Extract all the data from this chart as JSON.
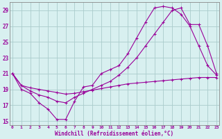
{
  "xlabel": "Windchill (Refroidissement éolien,°C)",
  "bg_color": "#d8f0f0",
  "grid_color": "#aacccc",
  "line_color": "#990099",
  "x_ticks": [
    0,
    1,
    2,
    3,
    4,
    5,
    6,
    7,
    8,
    9,
    10,
    11,
    12,
    13,
    14,
    15,
    16,
    17,
    18,
    19,
    20,
    21,
    22,
    23
  ],
  "y_ticks": [
    15,
    17,
    19,
    21,
    23,
    25,
    27,
    29
  ],
  "xlim": [
    -0.3,
    23.3
  ],
  "ylim": [
    14.5,
    30.0
  ],
  "curve1_x": [
    0,
    1,
    2,
    3,
    4,
    5,
    6,
    7,
    8,
    9,
    10,
    11,
    12,
    13,
    14,
    15,
    16,
    17,
    18,
    19,
    20,
    21,
    22,
    23
  ],
  "curve1_y": [
    21.0,
    19.0,
    18.5,
    17.3,
    16.5,
    15.2,
    15.2,
    17.5,
    19.3,
    19.5,
    21.0,
    21.5,
    22.0,
    23.5,
    25.5,
    27.5,
    29.3,
    29.5,
    29.3,
    28.5,
    27.0,
    24.5,
    22.0,
    20.8
  ],
  "curve2_x": [
    0,
    1,
    2,
    3,
    4,
    5,
    6,
    7,
    8,
    9,
    10,
    11,
    12,
    13,
    14,
    15,
    16,
    17,
    18,
    19,
    20,
    21,
    22,
    23
  ],
  "curve2_y": [
    21.0,
    19.5,
    18.8,
    18.3,
    18.0,
    17.5,
    17.3,
    18.0,
    18.5,
    19.0,
    19.5,
    20.0,
    20.8,
    21.8,
    23.0,
    24.5,
    26.0,
    27.5,
    29.0,
    29.3,
    27.2,
    27.2,
    24.5,
    21.0
  ],
  "curve3_x": [
    0,
    1,
    2,
    3,
    4,
    5,
    6,
    7,
    8,
    9,
    10,
    11,
    12,
    13,
    14,
    15,
    16,
    17,
    18,
    19,
    20,
    21,
    22,
    23
  ],
  "curve3_y": [
    21.0,
    19.5,
    19.2,
    19.0,
    18.8,
    18.6,
    18.4,
    18.5,
    18.7,
    18.9,
    19.1,
    19.3,
    19.5,
    19.7,
    19.8,
    19.9,
    20.0,
    20.1,
    20.2,
    20.3,
    20.4,
    20.5,
    20.5,
    20.5
  ]
}
